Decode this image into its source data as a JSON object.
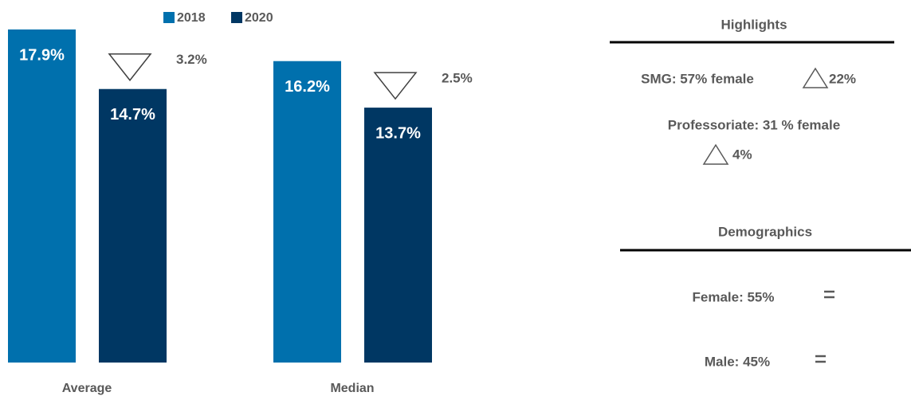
{
  "chart_data": {
    "type": "bar",
    "categories": [
      "Average",
      "Median"
    ],
    "series": [
      {
        "name": "2018",
        "color": "#0070ad",
        "values": [
          17.9,
          16.2
        ],
        "value_labels": [
          "17.9%",
          "16.2%"
        ]
      },
      {
        "name": "2020",
        "color": "#003763",
        "values": [
          14.7,
          13.7
        ],
        "value_labels": [
          "14.7%",
          "13.7%"
        ]
      }
    ],
    "changes": [
      "3.2%",
      "2.5%"
    ],
    "legend": "top"
  },
  "highlights": {
    "title": "Highlights",
    "items": [
      {
        "text": "SMG: 57% female",
        "change": "22%"
      },
      {
        "text": "Professoriate: 31 % female",
        "change": "4%"
      }
    ]
  },
  "demographics": {
    "title": "Demographics",
    "items": [
      {
        "text": "Female: 55%"
      },
      {
        "text": "Male: 45%"
      }
    ]
  }
}
